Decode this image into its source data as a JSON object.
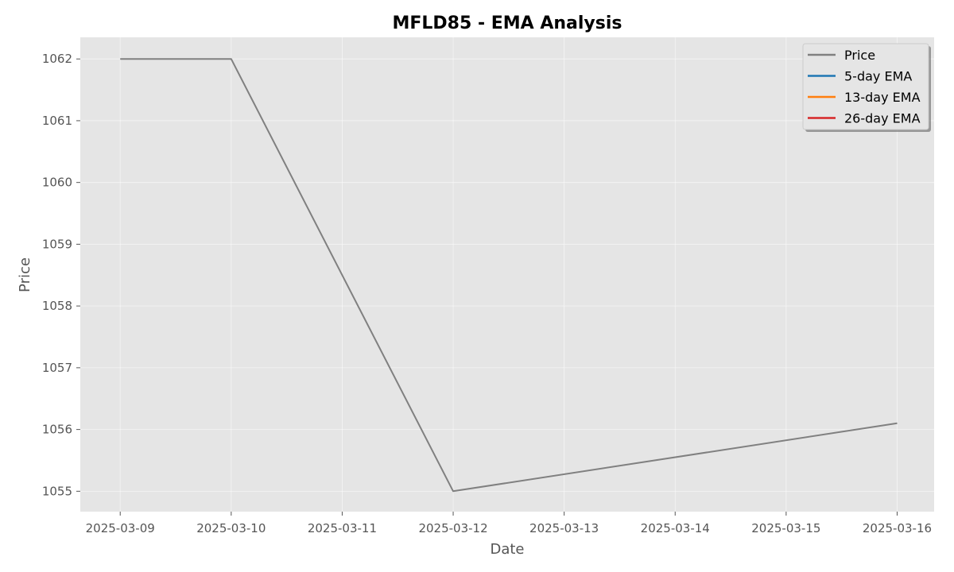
{
  "chart_data": {
    "type": "line",
    "title": "MFLD85 - EMA Analysis",
    "xlabel": "Date",
    "ylabel": "Price",
    "x_ticks": [
      "2025-03-09",
      "2025-03-10",
      "2025-03-11",
      "2025-03-12",
      "2025-03-13",
      "2025-03-14",
      "2025-03-15",
      "2025-03-16"
    ],
    "y_ticks": [
      1055,
      1056,
      1057,
      1058,
      1059,
      1060,
      1061,
      1062
    ],
    "xlim": [
      "2025-03-08T15:22",
      "2025-03-16T08:00"
    ],
    "ylim": [
      1054.67,
      1062.35
    ],
    "grid": true,
    "legend_position": "top-right",
    "series": [
      {
        "name": "Price",
        "color": "#808080",
        "points": [
          {
            "x": "2025-03-09",
            "y": 1062
          },
          {
            "x": "2025-03-10",
            "y": 1062
          },
          {
            "x": "2025-03-12",
            "y": 1055
          },
          {
            "x": "2025-03-16",
            "y": 1056.1
          }
        ]
      },
      {
        "name": "5-day EMA",
        "color": "#1f77b4",
        "points": []
      },
      {
        "name": "13-day EMA",
        "color": "#ff7f0e",
        "points": []
      },
      {
        "name": "26-day EMA",
        "color": "#d62728",
        "points": []
      }
    ]
  }
}
